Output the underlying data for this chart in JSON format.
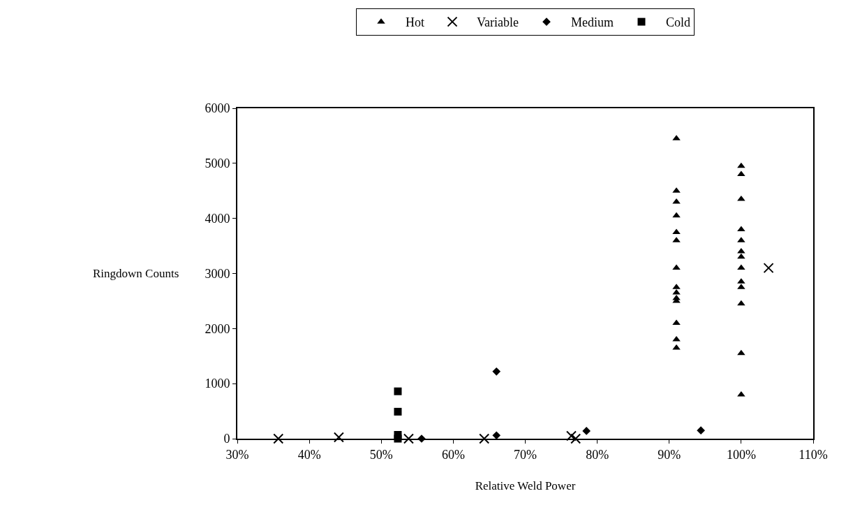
{
  "chart_data": {
    "type": "scatter",
    "xlabel": "Relative Weld Power",
    "ylabel": "Ringdown Counts",
    "xlim": [
      30,
      110
    ],
    "xticks": [
      {
        "value": 30,
        "label": "30%"
      },
      {
        "value": 40,
        "label": "40%"
      },
      {
        "value": 50,
        "label": "50%"
      },
      {
        "value": 60,
        "label": "60%"
      },
      {
        "value": 70,
        "label": "70%"
      },
      {
        "value": 80,
        "label": "80%"
      },
      {
        "value": 90,
        "label": "90%"
      },
      {
        "value": 100,
        "label": "100%"
      },
      {
        "value": 110,
        "label": "110%"
      }
    ],
    "ylim": [
      0,
      6000
    ],
    "yticks": [
      0,
      1000,
      2000,
      3000,
      4000,
      5000,
      6000
    ],
    "grid": false,
    "legend": "top",
    "series": [
      {
        "name": "Hot",
        "color": "#000000",
        "marker": "triangle",
        "x": [
          91,
          91,
          91,
          91,
          91,
          91,
          91,
          91,
          91,
          91,
          91,
          91,
          91,
          91,
          100,
          100,
          100,
          100,
          100,
          100,
          100,
          100,
          100,
          100,
          100,
          100,
          100
        ],
        "values": [
          5450,
          4500,
          4300,
          4050,
          3750,
          3600,
          3100,
          2750,
          2650,
          2550,
          2500,
          2100,
          1800,
          1650,
          4950,
          4800,
          4350,
          3800,
          3600,
          3400,
          3300,
          3100,
          2850,
          2750,
          2450,
          1550,
          800
        ]
      },
      {
        "name": "Variable",
        "color": "#000000",
        "marker": "cross",
        "x": [
          35.7,
          44.1,
          53.8,
          64.3,
          76.4,
          77,
          103.8
        ],
        "values": [
          0,
          25,
          0,
          0,
          50,
          0,
          3100
        ]
      },
      {
        "name": "Medium",
        "color": "#000000",
        "marker": "diamond",
        "x": [
          55.6,
          66,
          66,
          78.5,
          94.4
        ],
        "values": [
          0,
          1220,
          60,
          140,
          150
        ]
      },
      {
        "name": "Cold",
        "color": "#000000",
        "marker": "square",
        "x": [
          52.3,
          52.3,
          52.3,
          52.3
        ],
        "values": [
          860,
          490,
          70,
          0
        ]
      }
    ]
  }
}
